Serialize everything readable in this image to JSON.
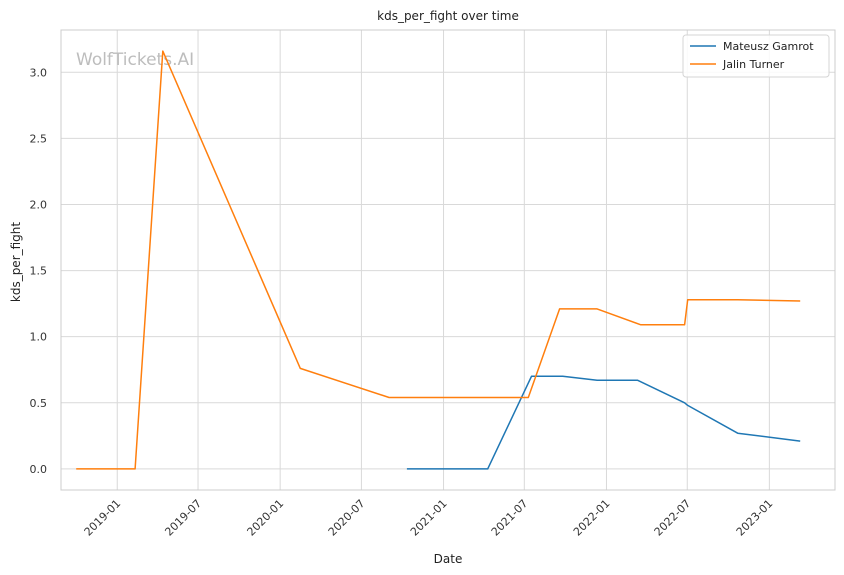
{
  "chart_data": {
    "type": "line",
    "title": "kds_per_fight over time",
    "xlabel": "Date",
    "ylabel": "kds_per_fight",
    "watermark": "WolfTickets.AI",
    "x_tick_labels": [
      "2019-01",
      "2019-07",
      "2020-01",
      "2020-07",
      "2021-01",
      "2021-07",
      "2022-01",
      "2022-07",
      "2023-01"
    ],
    "x_ticks": [
      "2019-01-01",
      "2019-07-01",
      "2020-01-01",
      "2020-07-01",
      "2021-01-01",
      "2021-07-01",
      "2022-01-01",
      "2022-07-01",
      "2023-01-01"
    ],
    "xlim": [
      "2018-08-28",
      "2023-05-28"
    ],
    "y_ticks": [
      0.0,
      0.5,
      1.0,
      1.5,
      2.0,
      2.5,
      3.0
    ],
    "y_tick_labels": [
      "0.0",
      "0.5",
      "1.0",
      "1.5",
      "2.0",
      "2.5",
      "3.0"
    ],
    "ylim": [
      -0.16,
      3.32
    ],
    "grid": true,
    "legend_position": "top-right",
    "series": [
      {
        "name": "Mateusz Gamrot",
        "color": "#1f77b4",
        "points": [
          {
            "x": "2020-10-11",
            "y": 0.0
          },
          {
            "x": "2021-04-10",
            "y": 0.0
          },
          {
            "x": "2021-07-17",
            "y": 0.7
          },
          {
            "x": "2021-09-25",
            "y": 0.7
          },
          {
            "x": "2021-12-11",
            "y": 0.67
          },
          {
            "x": "2022-03-12",
            "y": 0.67
          },
          {
            "x": "2022-06-25",
            "y": 0.5
          },
          {
            "x": "2022-07-02",
            "y": 0.48
          },
          {
            "x": "2022-10-22",
            "y": 0.27
          },
          {
            "x": "2023-03-11",
            "y": 0.21
          }
        ]
      },
      {
        "name": "Jalin Turner",
        "color": "#ff7f0e",
        "points": [
          {
            "x": "2018-10-01",
            "y": 0.0
          },
          {
            "x": "2019-02-10",
            "y": 0.0
          },
          {
            "x": "2019-04-13",
            "y": 3.16
          },
          {
            "x": "2020-02-15",
            "y": 0.76
          },
          {
            "x": "2020-09-01",
            "y": 0.54
          },
          {
            "x": "2021-07-10",
            "y": 0.54
          },
          {
            "x": "2021-09-18",
            "y": 1.21
          },
          {
            "x": "2021-12-11",
            "y": 1.21
          },
          {
            "x": "2022-03-19",
            "y": 1.09
          },
          {
            "x": "2022-06-25",
            "y": 1.09
          },
          {
            "x": "2022-07-02",
            "y": 1.28
          },
          {
            "x": "2022-10-22",
            "y": 1.28
          },
          {
            "x": "2023-03-11",
            "y": 1.27
          }
        ]
      }
    ]
  }
}
